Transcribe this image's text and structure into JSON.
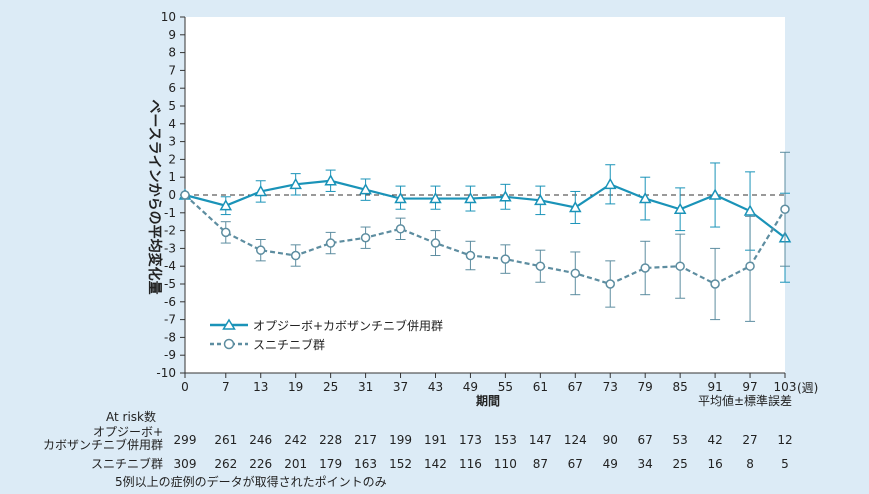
{
  "chart_data": {
    "type": "line",
    "ylabel": "ベースラインからの平均変化量",
    "xlabel": "期間",
    "x_unit": "(週)",
    "error_note": "平均値±標準誤差",
    "ylim": [
      -10,
      10
    ],
    "xlim": [
      0,
      103
    ],
    "yticks": [
      10,
      9,
      8,
      7,
      6,
      5,
      4,
      3,
      2,
      1,
      0,
      -1,
      -2,
      -3,
      -4,
      -5,
      -6,
      -7,
      -8,
      -9,
      -10
    ],
    "x": [
      0,
      7,
      13,
      19,
      25,
      31,
      37,
      43,
      49,
      55,
      61,
      67,
      73,
      79,
      85,
      91,
      97,
      103
    ],
    "reference_line": 0,
    "legend_position": "bottom-left",
    "series": [
      {
        "name": "オプジーボ+カボザンチニブ併用群",
        "color": "#1a93b8",
        "marker": "triangle",
        "values": [
          0,
          -0.6,
          0.2,
          0.6,
          0.8,
          0.3,
          -0.2,
          -0.2,
          -0.2,
          -0.1,
          -0.3,
          -0.7,
          0.6,
          -0.2,
          -0.8,
          0.0,
          -0.9,
          -2.4
        ],
        "err_low": [
          0,
          -1.1,
          -0.4,
          0.0,
          0.2,
          -0.3,
          -0.8,
          -0.8,
          -0.9,
          -0.8,
          -1.1,
          -1.6,
          -0.5,
          -1.4,
          -2.0,
          -1.8,
          -3.1,
          -4.9
        ],
        "err_high": [
          0,
          -0.1,
          0.8,
          1.2,
          1.4,
          0.9,
          0.5,
          0.5,
          0.5,
          0.6,
          0.5,
          0.2,
          1.7,
          1.0,
          0.4,
          1.8,
          1.3,
          0.1
        ]
      },
      {
        "name": "スニチニブ群",
        "color": "#5d8da0",
        "marker": "circle",
        "values": [
          0,
          -2.1,
          -3.1,
          -3.4,
          -2.7,
          -2.4,
          -1.9,
          -2.7,
          -3.4,
          -3.6,
          -4.0,
          -4.4,
          -5.0,
          -4.1,
          -4.0,
          -5.0,
          -4.0,
          -0.8
        ],
        "err_low": [
          0,
          -2.7,
          -3.7,
          -4.0,
          -3.3,
          -3.0,
          -2.5,
          -3.4,
          -4.2,
          -4.4,
          -4.9,
          -5.6,
          -6.3,
          -5.6,
          -5.8,
          -7.0,
          -7.1,
          -4.0
        ],
        "err_high": [
          0,
          -1.5,
          -2.5,
          -2.8,
          -2.1,
          -1.8,
          -1.3,
          -2.0,
          -2.6,
          -2.8,
          -3.1,
          -3.2,
          -3.7,
          -2.6,
          -2.2,
          -3.0,
          -1.2,
          2.4
        ]
      }
    ]
  },
  "at_risk": {
    "title": "At risk数",
    "rows": [
      {
        "label_line1": "オプジーボ+",
        "label_line2": "カボザンチニブ併用群",
        "values": [
          "299",
          "261",
          "246",
          "242",
          "228",
          "217",
          "199",
          "191",
          "173",
          "153",
          "147",
          "124",
          "90",
          "67",
          "53",
          "42",
          "27",
          "12"
        ]
      },
      {
        "label_line1": "スニチニブ群",
        "label_line2": "",
        "values": [
          "309",
          "262",
          "226",
          "201",
          "179",
          "163",
          "152",
          "142",
          "116",
          "110",
          "87",
          "67",
          "49",
          "34",
          "25",
          "16",
          "8",
          "5"
        ]
      }
    ]
  },
  "footnote": "5例以上の症例のデータが取得されたポイントのみ"
}
